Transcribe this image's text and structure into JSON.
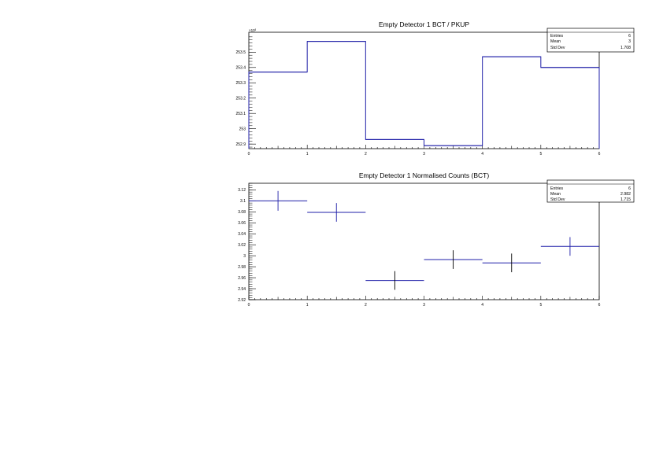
{
  "chart_data": [
    {
      "type": "histogram",
      "title": "Empty Detector 1 BCT / PKUP",
      "y_multiplier_label": "×10³",
      "x_edges": [
        0,
        1,
        2,
        3,
        4,
        5,
        6
      ],
      "values": [
        253.37,
        253.57,
        252.93,
        252.89,
        253.47,
        253.4
      ],
      "xlim": [
        0,
        6
      ],
      "ylim": [
        252.87,
        253.63
      ],
      "x_ticks": [
        "0",
        "1",
        "2",
        "3",
        "4",
        "5",
        "6"
      ],
      "y_ticks": [
        {
          "v": 252.9,
          "label": "252.9"
        },
        {
          "v": 253.0,
          "label": "253"
        },
        {
          "v": 253.1,
          "label": "253.1"
        },
        {
          "v": 253.2,
          "label": "253.2"
        },
        {
          "v": 253.3,
          "label": "253.3"
        },
        {
          "v": 253.4,
          "label": "253.4"
        },
        {
          "v": 253.5,
          "label": "253.5"
        }
      ],
      "stats": [
        {
          "label": "Entries",
          "value": "6"
        },
        {
          "label": "Mean",
          "value": "3"
        },
        {
          "label": "Std Dev",
          "value": "1.708"
        }
      ],
      "grid": false,
      "legend": "top-right"
    },
    {
      "type": "errorbar",
      "title": "Empty Detector 1 Normalised Counts (BCT)",
      "x_edges": [
        0,
        1,
        2,
        3,
        4,
        5,
        6
      ],
      "points": [
        {
          "y": 3.1,
          "err": 0.018,
          "color": "#1f1fa8"
        },
        {
          "y": 3.079,
          "err": 0.017,
          "color": "#1f1fa8"
        },
        {
          "y": 2.955,
          "err": 0.017,
          "color": "#000000"
        },
        {
          "y": 2.993,
          "err": 0.017,
          "color": "#000000"
        },
        {
          "y": 2.987,
          "err": 0.017,
          "color": "#000000"
        },
        {
          "y": 3.017,
          "err": 0.017,
          "color": "#1f1fa8"
        }
      ],
      "xlim": [
        0,
        6
      ],
      "ylim": [
        2.92,
        3.132
      ],
      "x_ticks": [
        "0",
        "1",
        "2",
        "3",
        "4",
        "5",
        "6"
      ],
      "y_ticks": [
        {
          "v": 2.92,
          "label": "2.92"
        },
        {
          "v": 2.94,
          "label": "2.94"
        },
        {
          "v": 2.96,
          "label": "2.96"
        },
        {
          "v": 2.98,
          "label": "2.98"
        },
        {
          "v": 3.0,
          "label": "3"
        },
        {
          "v": 3.02,
          "label": "3.02"
        },
        {
          "v": 3.04,
          "label": "3.04"
        },
        {
          "v": 3.06,
          "label": "3.06"
        },
        {
          "v": 3.08,
          "label": "3.08"
        },
        {
          "v": 3.1,
          "label": "3.1"
        },
        {
          "v": 3.12,
          "label": "3.12"
        }
      ],
      "stats": [
        {
          "label": "Entries",
          "value": "6"
        },
        {
          "label": "Mean",
          "value": "2.982"
        },
        {
          "label": "Std Dev",
          "value": "1.715"
        }
      ],
      "grid": false,
      "legend": "top-right"
    }
  ]
}
